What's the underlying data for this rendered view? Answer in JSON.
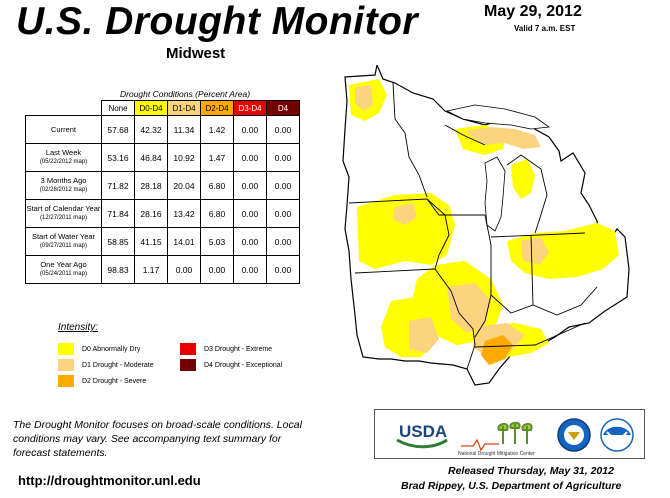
{
  "header": {
    "title": "U.S. Drought Monitor",
    "region": "Midwest",
    "date": "May 29, 2012",
    "valid": "Valid 7 a.m. EST"
  },
  "table": {
    "caption": "Drought Conditions (Percent Area)",
    "columns": [
      "None",
      "D0-D4",
      "D1-D4",
      "D2-D4",
      "D3-D4",
      "D4"
    ],
    "column_colors": [
      "#ffffff",
      "#ffff00",
      "#fcd37f",
      "#ffaa00",
      "#e60000",
      "#730000"
    ],
    "column_text_colors": [
      "#000000",
      "#000000",
      "#000000",
      "#000000",
      "#ffffff",
      "#ffffff"
    ],
    "rows": [
      {
        "label": "Current",
        "sub": "",
        "values": [
          "57.68",
          "42.32",
          "11.34",
          "1.42",
          "0.00",
          "0.00"
        ]
      },
      {
        "label": "Last Week",
        "sub": "(05/22/2012 map)",
        "values": [
          "53.16",
          "46.84",
          "10.92",
          "1.47",
          "0.00",
          "0.00"
        ]
      },
      {
        "label": "3 Months Ago",
        "sub": "(02/28/2012 map)",
        "values": [
          "71.82",
          "28.18",
          "20.04",
          "6.80",
          "0.00",
          "0.00"
        ]
      },
      {
        "label": "Start of Calendar Year",
        "sub": "(12/27/2011 map)",
        "values": [
          "71.84",
          "28.16",
          "13.42",
          "6.80",
          "0.00",
          "0.00"
        ]
      },
      {
        "label": "Start of Water Year",
        "sub": "(09/27/2011 map)",
        "values": [
          "58.85",
          "41.15",
          "14.01",
          "5.03",
          "0.00",
          "0.00"
        ]
      },
      {
        "label": "One Year Ago",
        "sub": "(05/24/2011 map)",
        "values": [
          "98.83",
          "1.17",
          "0.00",
          "0.00",
          "0.00",
          "0.00"
        ]
      }
    ]
  },
  "legend": {
    "title": "Intensity:",
    "items": [
      {
        "label": "D0 Abnormally Dry",
        "color": "#ffff00"
      },
      {
        "label": "D1 Drought - Moderate",
        "color": "#fcd37f"
      },
      {
        "label": "D2 Drought - Severe",
        "color": "#ffaa00"
      },
      {
        "label": "D3 Drought - Extreme",
        "color": "#e60000"
      },
      {
        "label": "D4 Drought - Exceptional",
        "color": "#730000"
      }
    ]
  },
  "footer": {
    "note": "The Drought Monitor focuses on broad-scale conditions. Local conditions may vary. See accompanying text summary for forecast statements.",
    "url": "http://droughtmonitor.unl.edu",
    "released": "Released Thursday, May 31, 2012",
    "author": "Brad Rippey, U.S. Department of Agriculture"
  },
  "logos": {
    "usda": "USDA",
    "ndmc": "National Drought Mitigation Center"
  }
}
